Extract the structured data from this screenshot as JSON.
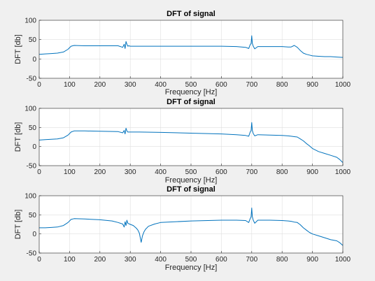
{
  "chart_data": [
    {
      "type": "line",
      "title": "DFT of signal",
      "xlabel": "Frequency [Hz]",
      "ylabel": "DFT [db]",
      "xlim": [
        0,
        1000
      ],
      "ylim": [
        -50,
        100
      ],
      "xticks": [
        "0",
        "100",
        "200",
        "300",
        "400",
        "500",
        "600",
        "700",
        "800",
        "900",
        "1000"
      ],
      "yticks": [
        "-50",
        "0",
        "50",
        "100"
      ],
      "grid": true,
      "color": "#0072bd",
      "series": [
        {
          "x": [
            0,
            20,
            40,
            60,
            80,
            95,
            105,
            115,
            150,
            200,
            260,
            275,
            280,
            283,
            286,
            289,
            292,
            295,
            300,
            330,
            400,
            500,
            600,
            650,
            680,
            690,
            695,
            698,
            700,
            702,
            705,
            710,
            720,
            760,
            800,
            820,
            830,
            840,
            850,
            860,
            870,
            880,
            890,
            900,
            920,
            940,
            960,
            980,
            1000
          ],
          "values": [
            12,
            13,
            14,
            15,
            18,
            25,
            33,
            35,
            34,
            34,
            34,
            30,
            38,
            27,
            45,
            38,
            33,
            34,
            33,
            33,
            33,
            33,
            33,
            32,
            30,
            27,
            37,
            40,
            60,
            40,
            33,
            26,
            32,
            32,
            32,
            31,
            31,
            35,
            30,
            22,
            15,
            12,
            10,
            8,
            7,
            6,
            6,
            5,
            4
          ]
        }
      ]
    },
    {
      "type": "line",
      "title": "DFT of signal",
      "xlabel": "Frequency [Hz]",
      "ylabel": "DFT [db]",
      "xlim": [
        0,
        1000
      ],
      "ylim": [
        -50,
        100
      ],
      "xticks": [
        "0",
        "100",
        "200",
        "300",
        "400",
        "500",
        "600",
        "700",
        "800",
        "900",
        "1000"
      ],
      "yticks": [
        "-50",
        "0",
        "50",
        "100"
      ],
      "grid": true,
      "color": "#0072bd",
      "series": [
        {
          "x": [
            0,
            20,
            40,
            60,
            80,
            95,
            105,
            115,
            150,
            200,
            260,
            275,
            280,
            283,
            286,
            289,
            292,
            295,
            300,
            330,
            400,
            500,
            600,
            650,
            680,
            690,
            695,
            698,
            700,
            702,
            705,
            710,
            720,
            760,
            800,
            820,
            830,
            840,
            850,
            860,
            870,
            880,
            890,
            900,
            920,
            940,
            960,
            980,
            990,
            1000
          ],
          "values": [
            17,
            18,
            19,
            20,
            23,
            30,
            38,
            41,
            41,
            40,
            39,
            36,
            42,
            33,
            48,
            41,
            38,
            38,
            38,
            38,
            37,
            35,
            33,
            31,
            29,
            27,
            38,
            42,
            63,
            42,
            34,
            28,
            31,
            30,
            29,
            28,
            27,
            26,
            25,
            20,
            15,
            8,
            2,
            -5,
            -13,
            -18,
            -23,
            -28,
            -34,
            -42
          ]
        }
      ]
    },
    {
      "type": "line",
      "title": "DFT of signal",
      "xlabel": "Frequency [Hz]",
      "ylabel": "DFT [db]",
      "xlim": [
        0,
        1000
      ],
      "ylim": [
        -50,
        100
      ],
      "xticks": [
        "0",
        "100",
        "200",
        "300",
        "400",
        "500",
        "600",
        "700",
        "800",
        "900",
        "1000"
      ],
      "yticks": [
        "-50",
        "0",
        "50",
        "100"
      ],
      "grid": true,
      "color": "#0072bd",
      "series": [
        {
          "x": [
            0,
            20,
            40,
            60,
            80,
            95,
            105,
            115,
            150,
            200,
            240,
            260,
            275,
            280,
            283,
            286,
            289,
            292,
            300,
            310,
            320,
            325,
            330,
            333,
            336,
            340,
            345,
            350,
            360,
            380,
            400,
            500,
            600,
            650,
            680,
            690,
            695,
            698,
            700,
            702,
            705,
            710,
            720,
            760,
            800,
            820,
            830,
            840,
            850,
            860,
            870,
            880,
            890,
            900,
            920,
            940,
            960,
            980,
            990,
            1000
          ],
          "values": [
            16,
            16,
            17,
            18,
            22,
            30,
            38,
            40,
            39,
            37,
            34,
            30,
            26,
            18,
            32,
            22,
            36,
            28,
            25,
            22,
            15,
            10,
            2,
            -10,
            -22,
            -5,
            5,
            12,
            20,
            26,
            30,
            34,
            36,
            36,
            35,
            30,
            40,
            45,
            68,
            45,
            36,
            28,
            36,
            36,
            35,
            34,
            33,
            31,
            30,
            24,
            16,
            10,
            4,
            0,
            -5,
            -10,
            -15,
            -18,
            -23,
            -30
          ]
        }
      ]
    }
  ]
}
